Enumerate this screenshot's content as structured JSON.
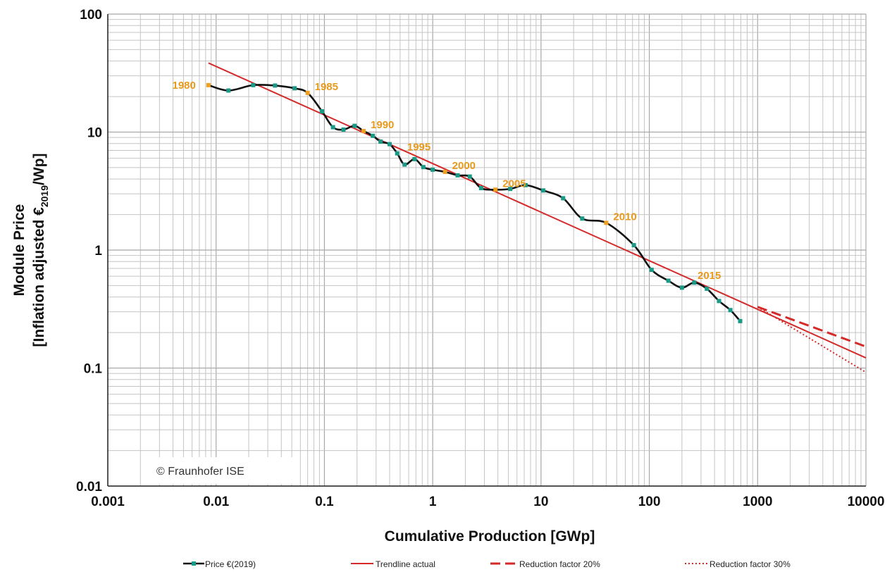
{
  "chart_data": {
    "type": "line",
    "xlabel": "Cumulative Production [GWp]",
    "ylabel_line1": "Module Price",
    "ylabel_line2_pre": "[Inflation adjusted €",
    "ylabel_line2_sub": "2019",
    "ylabel_line2_post": "/Wp]",
    "x_scale": "log",
    "y_scale": "log",
    "xlim": [
      0.001,
      10000
    ],
    "ylim": [
      0.01,
      100
    ],
    "x_ticks": [
      {
        "value": 0.001,
        "label": "0.001"
      },
      {
        "value": 0.01,
        "label": "0.01"
      },
      {
        "value": 0.1,
        "label": "0.1"
      },
      {
        "value": 1,
        "label": "1"
      },
      {
        "value": 10,
        "label": "10"
      },
      {
        "value": 100,
        "label": "100"
      },
      {
        "value": 1000,
        "label": "1000"
      },
      {
        "value": 10000,
        "label": "10000"
      }
    ],
    "y_ticks": [
      {
        "value": 0.01,
        "label": "0.01"
      },
      {
        "value": 0.1,
        "label": "0.1"
      },
      {
        "value": 1,
        "label": "1"
      },
      {
        "value": 10,
        "label": "10"
      },
      {
        "value": 100,
        "label": "100"
      }
    ],
    "grid": true,
    "legend_position": "bottom",
    "colors": {
      "price_line": "#111111",
      "price_marker": "#1a9a86",
      "year_marker": "#f0a020",
      "year_label": "#e89a1c",
      "trend": "#d42a2a"
    },
    "series": [
      {
        "name": "Price €(2019)",
        "style": "black-line-teal-markers",
        "points": [
          [
            0.0085,
            25.0
          ],
          [
            0.013,
            22.5
          ],
          [
            0.022,
            25.0
          ],
          [
            0.035,
            24.8
          ],
          [
            0.053,
            23.5
          ],
          [
            0.07,
            21.5
          ],
          [
            0.095,
            15.0
          ],
          [
            0.12,
            11.0
          ],
          [
            0.15,
            10.5
          ],
          [
            0.19,
            11.3
          ],
          [
            0.23,
            10.2
          ],
          [
            0.28,
            9.3
          ],
          [
            0.33,
            8.3
          ],
          [
            0.4,
            7.9
          ],
          [
            0.47,
            6.6
          ],
          [
            0.55,
            5.3
          ],
          [
            0.68,
            5.9
          ],
          [
            0.82,
            5.05
          ],
          [
            1.0,
            4.8
          ],
          [
            1.3,
            4.6
          ],
          [
            1.7,
            4.3
          ],
          [
            2.2,
            4.2
          ],
          [
            2.8,
            3.35
          ],
          [
            3.8,
            3.25
          ],
          [
            5.2,
            3.3
          ],
          [
            7.2,
            3.55
          ],
          [
            10.5,
            3.2
          ],
          [
            16.0,
            2.75
          ],
          [
            24.0,
            1.85
          ],
          [
            40.0,
            1.7
          ],
          [
            72.0,
            1.1
          ],
          [
            105.0,
            0.68
          ],
          [
            150.0,
            0.55
          ],
          [
            200.0,
            0.48
          ],
          [
            260.0,
            0.53
          ],
          [
            340.0,
            0.47
          ],
          [
            440.0,
            0.37
          ],
          [
            560.0,
            0.31
          ],
          [
            690.0,
            0.25
          ]
        ]
      },
      {
        "name": "Trendline actual",
        "style": "solid",
        "points": [
          [
            0.0085,
            38.5
          ],
          [
            10000.0,
            0.122
          ]
        ]
      },
      {
        "name": "Reduction factor 20%",
        "style": "dashed",
        "points": [
          [
            1000.0,
            0.33
          ],
          [
            10000.0,
            0.152
          ]
        ]
      },
      {
        "name": "Reduction factor 30%",
        "style": "dotted",
        "points": [
          [
            1000.0,
            0.33
          ],
          [
            10000.0,
            0.092
          ]
        ]
      }
    ],
    "year_markers": [
      {
        "label": "1980",
        "x": 0.0085,
        "y": 25.0,
        "label_side": "left"
      },
      {
        "label": "1985",
        "x": 0.07,
        "y": 21.5,
        "label_side": "right"
      },
      {
        "label": "1990",
        "x": 0.23,
        "y": 10.2,
        "label_side": "right"
      },
      {
        "label": "1995",
        "x": 0.5,
        "y": 6.6,
        "label_side": "right"
      },
      {
        "label": "2000",
        "x": 1.3,
        "y": 4.6,
        "label_side": "right"
      },
      {
        "label": "2005",
        "x": 3.8,
        "y": 3.25,
        "label_side": "right"
      },
      {
        "label": "2010",
        "x": 40.0,
        "y": 1.7,
        "label_side": "right"
      },
      {
        "label": "2015",
        "x": 240.0,
        "y": 0.54,
        "label_side": "right"
      }
    ],
    "annotation": "© Fraunhofer ISE"
  }
}
